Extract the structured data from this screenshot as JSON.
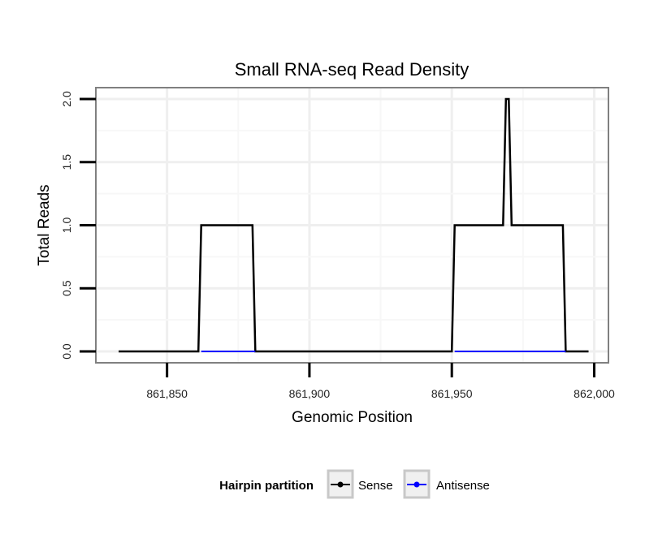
{
  "chart_data": {
    "type": "line",
    "title": "Small RNA-seq Read Density",
    "xlabel": "Genomic Position",
    "ylabel": "Total Reads",
    "xlim": [
      861825,
      862005
    ],
    "ylim": [
      -0.09,
      2.09
    ],
    "x_ticks": [
      861850,
      861900,
      861950,
      862000
    ],
    "x_tick_labels": [
      "861,850",
      "861,900",
      "861,950",
      "862,000"
    ],
    "y_ticks": [
      0,
      0.5,
      1,
      1.5,
      2
    ],
    "y_tick_labels": [
      "0.0",
      "0.5",
      "1.0",
      "1.5",
      "2.0"
    ],
    "grid": true,
    "legend": {
      "title": "Hairpin partition",
      "position": "bottom"
    },
    "series": [
      {
        "name": "Sense",
        "color": "#000000",
        "x": [
          861833,
          861861,
          861862,
          861880,
          861881,
          861950,
          861951,
          861968,
          861969,
          861970,
          861971,
          861989,
          861990,
          861998
        ],
        "y": [
          0,
          0,
          1,
          1,
          0,
          0,
          1,
          1,
          2,
          2,
          1,
          1,
          0,
          0
        ]
      },
      {
        "name": "Antisense",
        "color": "#0000ff",
        "segments": [
          {
            "x": [
              861862,
              861881
            ],
            "y": [
              0,
              0
            ]
          },
          {
            "x": [
              861951,
              861990
            ],
            "y": [
              0,
              0
            ]
          }
        ]
      }
    ]
  }
}
